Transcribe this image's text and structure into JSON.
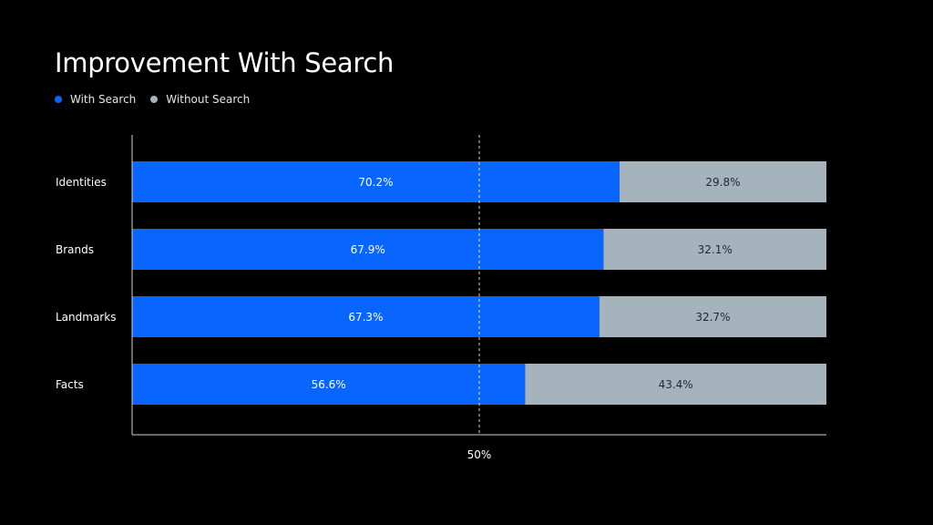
{
  "chart_data": {
    "type": "bar",
    "orientation": "horizontal",
    "stacked": true,
    "title": "Improvement With Search",
    "categories": [
      "Identities",
      "Brands",
      "Landmarks",
      "Facts"
    ],
    "series": [
      {
        "name": "With Search",
        "values": [
          70.2,
          67.9,
          67.3,
          56.6
        ],
        "color": "#0866ff"
      },
      {
        "name": "Without Search",
        "values": [
          29.8,
          32.1,
          32.7,
          43.4
        ],
        "color": "#a5b3bd"
      }
    ],
    "value_suffix": "%",
    "xlim": [
      0,
      100
    ],
    "reference_line": {
      "value": 50,
      "label": "50%"
    },
    "legend_position": "top-left",
    "grid": false,
    "label_colors": {
      "inside_primary": "#ffffff",
      "inside_secondary": "#1c2b33"
    },
    "axis_color": "#d0d0d0",
    "category_label_color": "#ffffff"
  }
}
